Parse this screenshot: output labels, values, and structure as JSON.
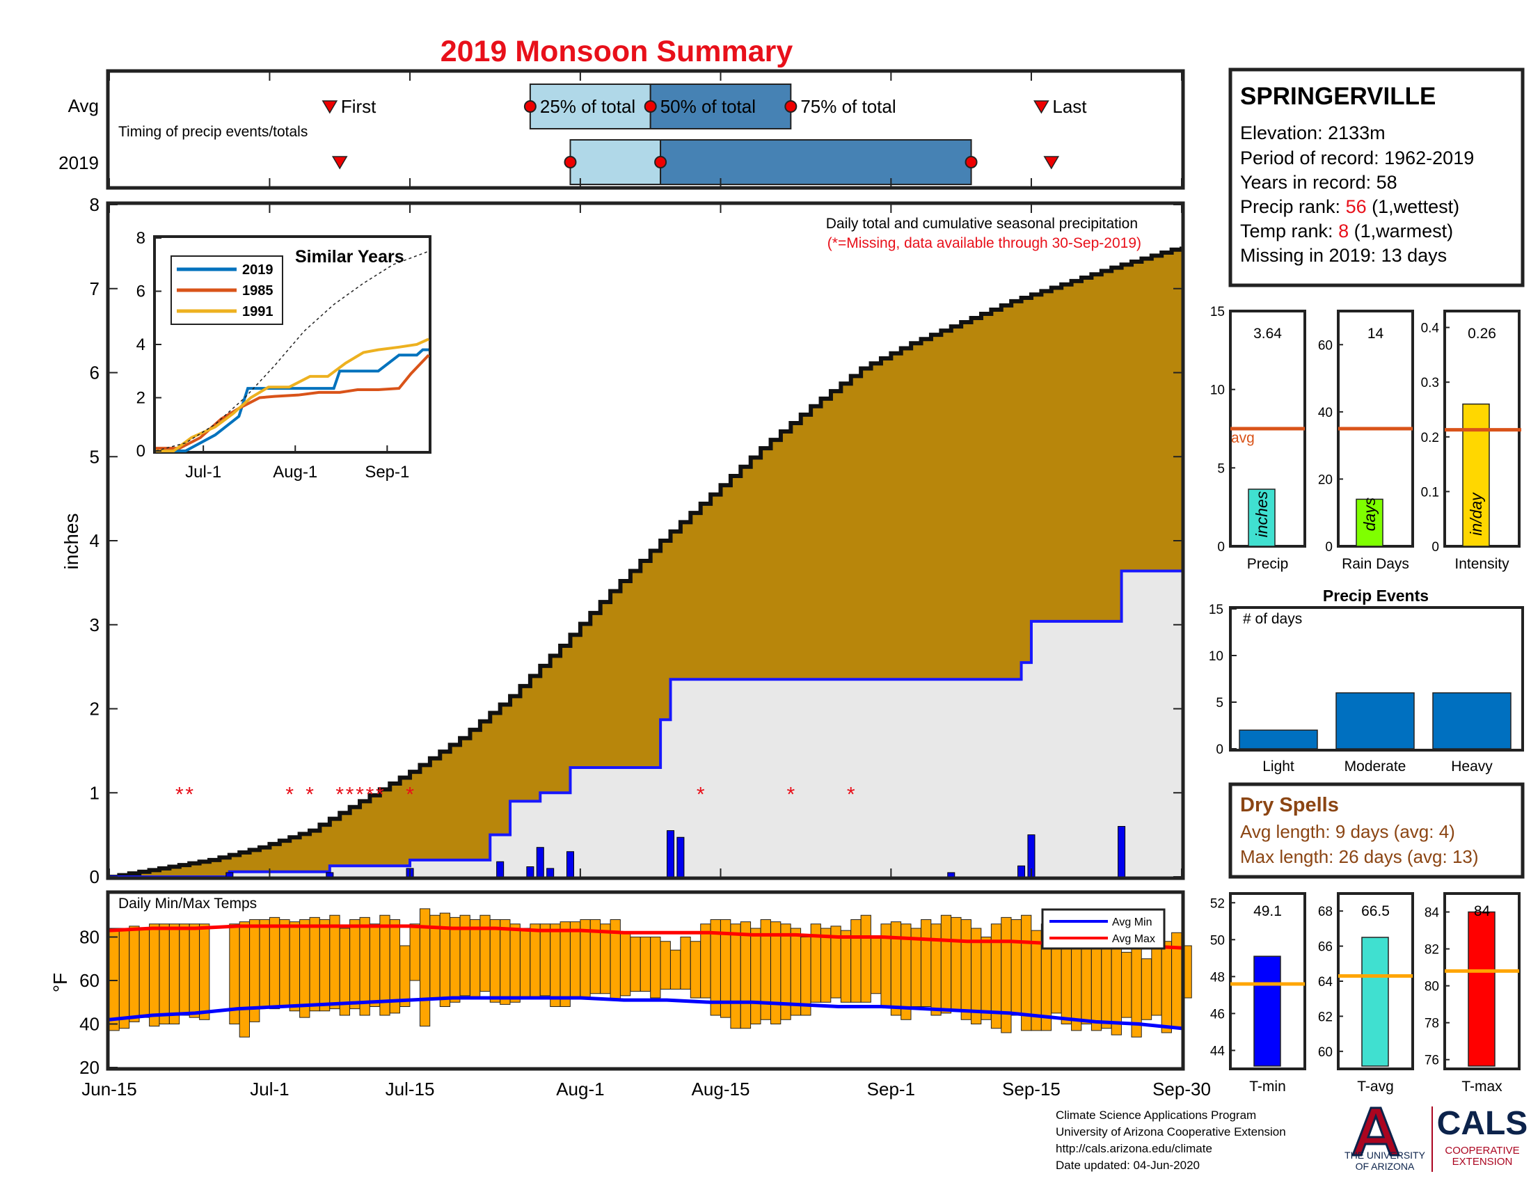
{
  "title": "2019 Monsoon Summary",
  "colors": {
    "title": "#e8101a",
    "accent_red": "#e8101a",
    "brown_text": "#8b4513",
    "avg_fill": "#b8860b",
    "obs_fill": "#e8e8e8",
    "obs_line": "#1818ff",
    "bar_blue": "#0070c0",
    "avg_line": "#d95319",
    "temp_bar": "#ffa500",
    "avg_max": "#ff0000",
    "avg_min": "#0000ff",
    "light_blue": "#b0d8e8",
    "dark_blue": "#4682b4"
  },
  "timing": {
    "row_labels": [
      "Avg",
      "2019"
    ],
    "subtitle": "Timing of precip events/totals",
    "labels": {
      "first": "First",
      "p25": "25% of total",
      "p50": "50% of total",
      "p75": "75% of total",
      "last": "Last"
    },
    "avg": {
      "first": 22,
      "p25": 42,
      "p50": 54,
      "p75": 68,
      "last": 93
    },
    "y2019": {
      "first": 23,
      "p25": 46,
      "p50": 55,
      "p75": 86,
      "last": 94
    }
  },
  "station": {
    "name": "SPRINGERVILLE",
    "elevation_label": "Elevation: 2133m",
    "period_label": "Period of record: 1962-2019",
    "years_label": "Years in record: 58",
    "precip_rank_pre": "Precip rank: ",
    "precip_rank": "56",
    "precip_rank_post": " (1,wettest)",
    "temp_rank_pre": "Temp rank: ",
    "temp_rank": "8",
    "temp_rank_post": " (1,warmest)",
    "missing_label": "Missing in 2019: 13 days"
  },
  "main": {
    "ylabel": "inches",
    "note1": "Daily total and cumulative seasonal precipitation",
    "note2": "(*=Missing, data available through 30-Sep-2019)",
    "x_ticks": [
      {
        "day": 0,
        "label": "Jun-15"
      },
      {
        "day": 16,
        "label": "Jul-1"
      },
      {
        "day": 30,
        "label": "Jul-15"
      },
      {
        "day": 47,
        "label": "Aug-1"
      },
      {
        "day": 61,
        "label": "Aug-15"
      },
      {
        "day": 78,
        "label": "Sep-1"
      },
      {
        "day": 92,
        "label": "Sep-15"
      },
      {
        "day": 107,
        "label": "Sep-30"
      }
    ],
    "y_ticks": [
      "0",
      "1",
      "2",
      "3",
      "4",
      "5",
      "6",
      "7",
      "8"
    ]
  },
  "inset": {
    "title": "Similar Years",
    "legend": [
      "2019",
      "1985",
      "1991"
    ],
    "x_ticks": [
      "Jul-1",
      "Aug-1",
      "Sep-1"
    ],
    "y_ticks": [
      "0",
      "2",
      "4",
      "6",
      "8"
    ]
  },
  "bars_top": [
    {
      "value_label": "3.64",
      "name": "Precip",
      "unit": "inches",
      "yticks": [
        "0",
        "5",
        "10",
        "15"
      ],
      "avg_label": "avg"
    },
    {
      "value_label": "14",
      "name": "Rain Days",
      "unit": "days",
      "yticks": [
        "0",
        "20",
        "40",
        "60"
      ]
    },
    {
      "value_label": "0.26",
      "name": "Intensity",
      "unit": "in/day",
      "yticks": [
        "0",
        "0.1",
        "0.2",
        "0.3",
        "0.4"
      ]
    }
  ],
  "events": {
    "title": "Precip Events",
    "ylabel": "# of days",
    "yticks": [
      "0",
      "5",
      "10",
      "15"
    ],
    "categories": [
      "Light",
      "Moderate",
      "Heavy"
    ]
  },
  "dry": {
    "title": "Dry Spells",
    "avg_line": "Avg length: 9 days (avg: 4)",
    "max_line": "Max length: 26 days (avg: 13)"
  },
  "temps": {
    "title": "Daily Min/Max Temps",
    "ylabel": "°F",
    "y_ticks": [
      "20",
      "40",
      "60",
      "80"
    ],
    "legend": [
      "Avg Min",
      "Avg Max"
    ]
  },
  "bars_temp": [
    {
      "value_label": "49.1",
      "name": "T-min",
      "yticks": [
        "44",
        "46",
        "48",
        "50",
        "52"
      ]
    },
    {
      "value_label": "66.5",
      "name": "T-avg",
      "yticks": [
        "60",
        "62",
        "64",
        "66",
        "68"
      ]
    },
    {
      "value_label": "84",
      "name": "T-max",
      "yticks": [
        "76",
        "78",
        "80",
        "82",
        "84"
      ]
    }
  ],
  "footer": {
    "lines": [
      "Climate Science Applications Program",
      "University of Arizona Cooperative Extension",
      "http://cals.arizona.edu/climate",
      " Date updated: 04-Jun-2020"
    ],
    "ua_text1": "THE UNIVERSITY",
    "ua_text2": "OF ARIZONA",
    "cals": "CALS",
    "cals_sub1": "COOPERATIVE",
    "cals_sub2": "EXTENSION"
  },
  "chart_data": [
    {
      "type": "area",
      "title": "Daily total and cumulative seasonal precipitation",
      "ylabel": "inches",
      "ylim": [
        0,
        8
      ],
      "x_unit": "days since Jun-15 (0-107)",
      "avg_cumulative": {
        "x": [
          0,
          5,
          10,
          15,
          20,
          25,
          30,
          35,
          40,
          45,
          50,
          55,
          60,
          65,
          70,
          75,
          80,
          85,
          90,
          95,
          100,
          107
        ],
        "y": [
          0,
          0.1,
          0.2,
          0.35,
          0.55,
          0.9,
          1.25,
          1.65,
          2.15,
          2.75,
          3.4,
          4.0,
          4.55,
          5.1,
          5.6,
          6.05,
          6.35,
          6.6,
          6.85,
          7.05,
          7.25,
          7.5
        ]
      },
      "observed_cumulative": {
        "x": [
          0,
          12,
          22,
          30,
          38,
          40,
          43,
          46,
          55,
          56,
          83,
          91,
          92,
          100,
          101,
          107
        ],
        "y": [
          0,
          0.06,
          0.13,
          0.2,
          0.5,
          0.9,
          1.0,
          1.3,
          1.87,
          2.35,
          2.35,
          2.55,
          3.04,
          3.04,
          3.64,
          3.64
        ]
      },
      "daily_x": [
        12,
        22,
        30,
        39,
        42,
        43,
        44,
        46,
        56,
        57,
        84,
        91,
        92,
        101
      ],
      "daily_y": [
        0.05,
        0.05,
        0.1,
        0.18,
        0.12,
        0.35,
        0.1,
        0.3,
        0.55,
        0.47,
        0.05,
        0.13,
        0.5,
        0.6
      ],
      "missing_days": [
        7,
        8,
        18,
        20,
        23,
        24,
        25,
        26,
        27,
        30,
        59,
        68,
        74
      ]
    },
    {
      "type": "line",
      "title": "Similar Years",
      "series": [
        {
          "name": "2019",
          "x": [
            0,
            10,
            20,
            28,
            31,
            45,
            60,
            62,
            75,
            82,
            84,
            88,
            90,
            92
          ],
          "y": [
            0,
            0,
            0.6,
            1.3,
            2.35,
            2.35,
            2.35,
            3.0,
            3.0,
            3.6,
            3.6,
            3.6,
            3.8,
            3.8
          ]
        },
        {
          "name": "1985",
          "x": [
            0,
            8,
            15,
            22,
            28,
            35,
            40,
            48,
            55,
            62,
            68,
            75,
            82,
            86,
            92
          ],
          "y": [
            0.1,
            0.1,
            0.5,
            1.2,
            1.6,
            2.0,
            2.05,
            2.1,
            2.2,
            2.2,
            2.3,
            2.3,
            2.35,
            2.9,
            3.6
          ]
        },
        {
          "name": "1991",
          "x": [
            0,
            6,
            12,
            20,
            26,
            32,
            38,
            45,
            52,
            58,
            64,
            70,
            75,
            82,
            88,
            92
          ],
          "y": [
            0,
            0,
            0.5,
            0.9,
            1.4,
            2.0,
            2.4,
            2.4,
            2.8,
            2.8,
            3.3,
            3.7,
            3.8,
            3.9,
            4.0,
            4.2
          ]
        },
        {
          "name": "",
          "x": [
            0,
            10,
            20,
            30,
            40,
            50,
            60,
            70,
            80,
            92
          ],
          "y": [
            0,
            0.3,
            1.0,
            2.0,
            3.2,
            4.5,
            5.5,
            6.3,
            7.0,
            7.5
          ]
        }
      ],
      "ylim": [
        0,
        8
      ]
    },
    {
      "type": "bar",
      "title": "Precip Events",
      "categories": [
        "Light",
        "Moderate",
        "Heavy"
      ],
      "values": [
        2,
        6,
        6
      ],
      "ylim": [
        0,
        15
      ]
    },
    {
      "type": "bar",
      "categories": [
        "Precip",
        "Rain Days",
        "Intensity"
      ],
      "values": [
        3.64,
        14,
        0.26
      ],
      "averages": [
        7.5,
        35,
        0.213
      ],
      "ylim_each": [
        [
          0,
          15
        ],
        [
          0,
          70
        ],
        [
          0,
          0.43
        ]
      ]
    },
    {
      "type": "bar",
      "title": "Daily Min/Max Temps",
      "ylabel": "°F",
      "ylim": [
        20,
        100
      ],
      "daily_min": [
        37,
        38,
        41,
        43,
        39,
        40,
        40,
        44,
        43,
        42,
        null,
        null,
        40,
        34,
        41,
        48,
        47,
        48,
        46,
        43,
        46,
        46,
        47,
        44,
        47,
        44,
        48,
        44,
        45,
        48,
        60,
        39,
        52,
        48,
        50,
        53,
        52,
        55,
        50,
        49,
        50,
        52,
        52,
        53,
        48,
        48,
        52,
        52,
        54,
        54,
        51,
        53,
        55,
        55,
        52,
        56,
        56,
        56,
        52,
        52,
        44,
        43,
        38,
        38,
        40,
        42,
        40,
        42,
        44,
        44,
        50,
        50,
        52,
        50,
        50,
        50,
        54,
        48,
        44,
        42,
        48,
        48,
        44,
        45,
        46,
        42,
        40,
        42,
        38,
        36,
        44,
        37,
        37,
        37,
        45,
        40,
        37,
        40,
        37,
        38,
        35,
        43,
        34,
        42,
        44,
        36,
        38,
        52
      ],
      "daily_max": [
        84,
        84,
        85,
        84,
        86,
        86,
        86,
        86,
        86,
        86,
        null,
        null,
        86,
        87,
        88,
        88,
        89,
        88,
        87,
        88,
        89,
        88,
        90,
        84,
        88,
        89,
        86,
        90,
        88,
        76,
        86,
        93,
        90,
        91,
        89,
        90,
        88,
        90,
        88,
        88,
        86,
        84,
        86,
        86,
        86,
        87,
        87,
        88,
        88,
        86,
        88,
        82,
        80,
        80,
        80,
        78,
        74,
        80,
        78,
        86,
        88,
        88,
        86,
        87,
        84,
        88,
        87,
        86,
        84,
        80,
        86,
        84,
        85,
        83,
        88,
        90,
        80,
        86,
        87,
        86,
        84,
        88,
        86,
        90,
        89,
        88,
        84,
        80,
        86,
        89,
        88,
        90,
        83,
        86,
        88,
        84,
        78,
        80,
        76,
        78,
        80,
        73,
        80,
        70,
        75,
        78,
        82,
        76
      ],
      "avg_max": [
        83,
        84,
        84,
        85,
        85,
        85,
        85,
        85,
        84,
        84,
        83,
        83,
        82,
        82,
        82,
        81,
        81,
        80,
        80,
        79,
        78,
        78,
        77,
        76,
        76,
        75
      ],
      "avg_min": [
        42,
        44,
        45,
        47,
        48,
        49,
        50,
        51,
        52,
        52,
        52,
        52,
        51,
        51,
        50,
        50,
        49,
        48,
        48,
        47,
        46,
        45,
        43,
        41,
        40,
        38
      ]
    },
    {
      "type": "bar",
      "categories": [
        "T-min",
        "T-avg",
        "T-max"
      ],
      "values": [
        49.1,
        66.5,
        84
      ],
      "averages": [
        47.6,
        64.3,
        80.8
      ],
      "ylim_each": [
        [
          43,
          52.5
        ],
        [
          59,
          69
        ],
        [
          75.5,
          85
        ]
      ]
    }
  ]
}
